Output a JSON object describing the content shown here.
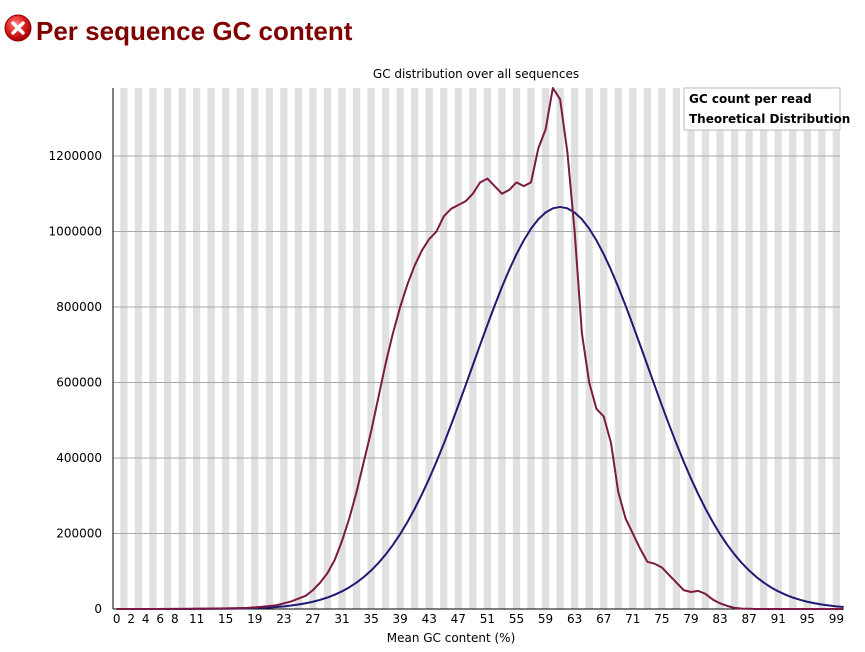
{
  "header": {
    "title": "Per sequence GC content",
    "status_icon": "error-icon",
    "status_color": "#d9141e",
    "title_color": "#800000"
  },
  "chart_data": {
    "type": "line",
    "title": "GC distribution over all sequences",
    "xlabel": "Mean GC content (%)",
    "ylabel": "",
    "xlim": [
      0,
      100
    ],
    "ylim": [
      0,
      1380000
    ],
    "grid": true,
    "grid_style": "alternating vertical stripes",
    "legend_position": "top-right",
    "x_tick_labels": [
      "0",
      "2",
      "4",
      "6",
      "8",
      "11",
      "15",
      "19",
      "23",
      "27",
      "31",
      "35",
      "39",
      "43",
      "47",
      "51",
      "55",
      "59",
      "63",
      "67",
      "71",
      "75",
      "79",
      "83",
      "87",
      "91",
      "95",
      "99"
    ],
    "y_tick_labels": [
      "0",
      "200000",
      "400000",
      "600000",
      "800000",
      "1000000",
      "1200000"
    ],
    "y_tick_values": [
      0,
      200000,
      400000,
      600000,
      800000,
      1000000,
      1200000
    ],
    "series": [
      {
        "name": "GC count per read",
        "color": "#7b1a44",
        "points": [
          [
            0,
            0
          ],
          [
            5,
            0
          ],
          [
            10,
            500
          ],
          [
            15,
            1500
          ],
          [
            18,
            3000
          ],
          [
            20,
            6000
          ],
          [
            22,
            10000
          ],
          [
            24,
            20000
          ],
          [
            26,
            35000
          ],
          [
            27,
            50000
          ],
          [
            28,
            70000
          ],
          [
            29,
            95000
          ],
          [
            30,
            130000
          ],
          [
            31,
            180000
          ],
          [
            32,
            240000
          ],
          [
            33,
            310000
          ],
          [
            34,
            390000
          ],
          [
            35,
            470000
          ],
          [
            36,
            560000
          ],
          [
            37,
            650000
          ],
          [
            38,
            730000
          ],
          [
            39,
            800000
          ],
          [
            40,
            860000
          ],
          [
            41,
            910000
          ],
          [
            42,
            950000
          ],
          [
            43,
            980000
          ],
          [
            44,
            1000000
          ],
          [
            45,
            1040000
          ],
          [
            46,
            1060000
          ],
          [
            47,
            1070000
          ],
          [
            48,
            1080000
          ],
          [
            49,
            1100000
          ],
          [
            50,
            1130000
          ],
          [
            51,
            1140000
          ],
          [
            52,
            1120000
          ],
          [
            53,
            1100000
          ],
          [
            54,
            1110000
          ],
          [
            55,
            1130000
          ],
          [
            56,
            1120000
          ],
          [
            57,
            1130000
          ],
          [
            58,
            1220000
          ],
          [
            59,
            1270000
          ],
          [
            60,
            1380000
          ],
          [
            61,
            1350000
          ],
          [
            62,
            1210000
          ],
          [
            63,
            1000000
          ],
          [
            64,
            730000
          ],
          [
            65,
            600000
          ],
          [
            66,
            530000
          ],
          [
            67,
            510000
          ],
          [
            68,
            440000
          ],
          [
            69,
            310000
          ],
          [
            70,
            240000
          ],
          [
            71,
            200000
          ],
          [
            72,
            160000
          ],
          [
            73,
            125000
          ],
          [
            74,
            120000
          ],
          [
            75,
            110000
          ],
          [
            76,
            90000
          ],
          [
            77,
            70000
          ],
          [
            78,
            50000
          ],
          [
            79,
            45000
          ],
          [
            80,
            48000
          ],
          [
            81,
            40000
          ],
          [
            82,
            25000
          ],
          [
            83,
            15000
          ],
          [
            84,
            8000
          ],
          [
            85,
            3000
          ],
          [
            86,
            1000
          ],
          [
            88,
            0
          ],
          [
            100,
            0
          ]
        ]
      },
      {
        "name": "Theoretical Distribution",
        "color": "#1f1a72",
        "mean": 61,
        "sd": 12,
        "peak": 1065000,
        "points": []
      }
    ]
  }
}
